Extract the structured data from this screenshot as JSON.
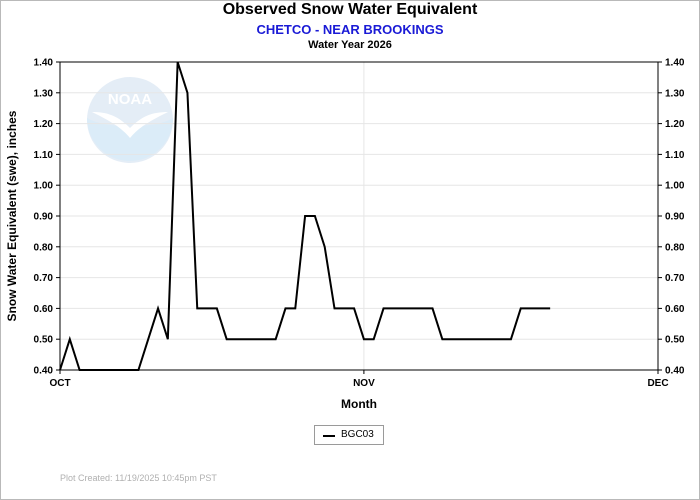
{
  "header": {
    "title": "Observed Snow Water Equivalent",
    "subtitle": "CHETCO - NEAR BROOKINGS",
    "subtitle2": "Water Year 2026"
  },
  "footer": {
    "created": "Plot Created:  11/19/2025 10:45pm PST"
  },
  "watermark": {
    "text": "NOAA",
    "colors": {
      "sky": "#dbe7f4",
      "sea": "#cfe6f6",
      "bird": "#ffffff"
    }
  },
  "chart_data": {
    "type": "line",
    "title": "Observed Snow Water Equivalent",
    "xlabel": "Month",
    "ylabel": "Snow Water Equivalent (swe),  inches",
    "ylim": [
      0.4,
      1.4
    ],
    "yticks": [
      "0.40",
      "0.50",
      "0.60",
      "0.70",
      "0.80",
      "0.90",
      "1.00",
      "1.10",
      "1.20",
      "1.30",
      "1.40"
    ],
    "xlim": [
      "2025-10-01",
      "2025-12-01"
    ],
    "xticks": [
      {
        "label": "OCT",
        "date": "2025-10-01"
      },
      {
        "label": "NOV",
        "date": "2025-11-01"
      },
      {
        "label": "DEC",
        "date": "2025-12-01"
      }
    ],
    "grid": true,
    "legend_position": "bottom-center",
    "series": [
      {
        "name": "BGC03",
        "color": "#000000",
        "points": [
          [
            "2025-10-01",
            0.4
          ],
          [
            "2025-10-02",
            0.5
          ],
          [
            "2025-10-03",
            0.4
          ],
          [
            "2025-10-04",
            0.4
          ],
          [
            "2025-10-05",
            0.4
          ],
          [
            "2025-10-06",
            0.4
          ],
          [
            "2025-10-07",
            0.4
          ],
          [
            "2025-10-08",
            0.4
          ],
          [
            "2025-10-09",
            0.4
          ],
          [
            "2025-10-10",
            0.5
          ],
          [
            "2025-10-11",
            0.6
          ],
          [
            "2025-10-12",
            0.5
          ],
          [
            "2025-10-13",
            1.4
          ],
          [
            "2025-10-14",
            1.3
          ],
          [
            "2025-10-15",
            0.6
          ],
          [
            "2025-10-16",
            0.6
          ],
          [
            "2025-10-17",
            0.6
          ],
          [
            "2025-10-18",
            0.5
          ],
          [
            "2025-10-19",
            0.5
          ],
          [
            "2025-10-20",
            0.5
          ],
          [
            "2025-10-21",
            0.5
          ],
          [
            "2025-10-22",
            0.5
          ],
          [
            "2025-10-23",
            0.5
          ],
          [
            "2025-10-24",
            0.6
          ],
          [
            "2025-10-25",
            0.6
          ],
          [
            "2025-10-26",
            0.9
          ],
          [
            "2025-10-27",
            0.9
          ],
          [
            "2025-10-28",
            0.8
          ],
          [
            "2025-10-29",
            0.6
          ],
          [
            "2025-10-30",
            0.6
          ],
          [
            "2025-10-31",
            0.6
          ],
          [
            "2025-11-01",
            0.5
          ],
          [
            "2025-11-02",
            0.5
          ],
          [
            "2025-11-03",
            0.6
          ],
          [
            "2025-11-04",
            0.6
          ],
          [
            "2025-11-05",
            0.6
          ],
          [
            "2025-11-06",
            0.6
          ],
          [
            "2025-11-07",
            0.6
          ],
          [
            "2025-11-08",
            0.6
          ],
          [
            "2025-11-09",
            0.5
          ],
          [
            "2025-11-10",
            0.5
          ],
          [
            "2025-11-11",
            0.5
          ],
          [
            "2025-11-12",
            0.5
          ],
          [
            "2025-11-13",
            0.5
          ],
          [
            "2025-11-14",
            0.5
          ],
          [
            "2025-11-15",
            0.5
          ],
          [
            "2025-11-16",
            0.5
          ],
          [
            "2025-11-17",
            0.6
          ],
          [
            "2025-11-18",
            0.6
          ],
          [
            "2025-11-19",
            0.6
          ],
          [
            "2025-11-20",
            0.6
          ]
        ]
      }
    ]
  }
}
